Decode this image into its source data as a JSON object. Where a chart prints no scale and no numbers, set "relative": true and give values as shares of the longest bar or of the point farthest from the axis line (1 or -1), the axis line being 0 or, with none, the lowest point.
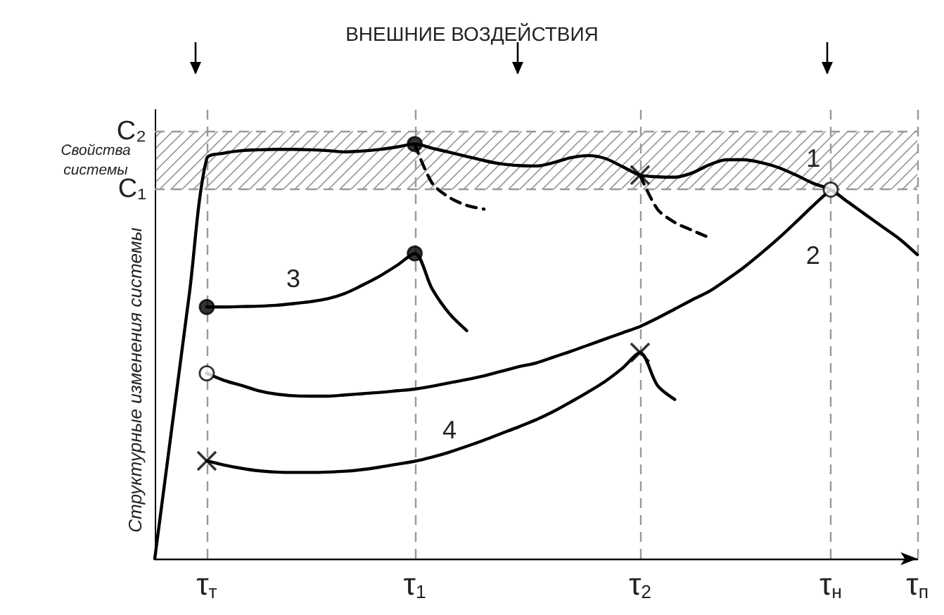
{
  "chart_data": {
    "type": "line",
    "title": "ВНЕШНИЕ ВОЗДЕЙСТВИЯ",
    "ylabel": "Структурные изменения системы",
    "relative": true,
    "grid": "x",
    "categories": [
      null,
      null,
      null,
      "τ$_{т}$",
      null,
      null,
      null,
      null,
      null,
      null,
      null,
      null,
      null,
      null,
      null,
      "τ$_{1}$",
      null,
      null,
      null,
      null,
      null,
      null,
      null,
      null,
      null,
      null,
      null,
      null,
      "τ$_{2}$",
      null,
      null,
      null,
      null,
      null,
      null,
      null,
      null,
      null,
      null,
      "τ$_{н}$",
      null,
      null,
      null,
      null,
      "τ$_{п}$"
    ],
    "line_style": "solid",
    "marker": "none",
    "series": [
      {
        "name": "1",
        "color": "#000000",
        "values": [
          0,
          0.32,
          0.64,
          0.965,
          0.978,
          0.984,
          0.986,
          0.987,
          0.987,
          0.986,
          0.984,
          0.981,
          0.983,
          0.987,
          0.993,
          1.0,
          0.99,
          0.98,
          0.97,
          0.96,
          0.952,
          0.948,
          0.947,
          0.955,
          0.967,
          0.972,
          0.965,
          0.945,
          0.925,
          0.921,
          0.92,
          0.93,
          0.95,
          0.962,
          0.962,
          0.955,
          0.943,
          0.925,
          0.905,
          0.89,
          0.86,
          0.83,
          0.8,
          0.77,
          0.733
        ]
      },
      {
        "color": "#000000",
        "line_style": "dashed",
        "values": [
          null,
          null,
          null,
          null,
          null,
          null,
          null,
          null,
          null,
          null,
          null,
          null,
          null,
          null,
          null,
          1.0,
          0.906,
          0.871,
          0.852,
          0.843,
          null,
          null,
          null,
          null,
          null,
          null,
          null,
          null,
          null,
          null,
          null,
          null,
          null,
          null,
          null,
          null,
          null,
          null,
          null,
          null,
          null,
          null,
          null,
          null,
          null
        ]
      },
      {
        "color": "#000000",
        "line_style": "dashed",
        "values": [
          null,
          null,
          null,
          null,
          null,
          null,
          null,
          null,
          null,
          null,
          null,
          null,
          null,
          null,
          null,
          null,
          null,
          null,
          null,
          null,
          null,
          null,
          null,
          null,
          null,
          null,
          null,
          null,
          0.925,
          0.843,
          0.811,
          0.792,
          0.774,
          null,
          null,
          null,
          null,
          null,
          null,
          null,
          null,
          null,
          null,
          null,
          null
        ]
      },
      {
        "name": "2",
        "color": "#000000",
        "values": [
          null,
          null,
          null,
          0.447,
          0.43,
          0.418,
          0.405,
          0.397,
          0.393,
          0.392,
          0.392,
          0.395,
          0.398,
          0.401,
          0.405,
          0.409,
          0.416,
          0.424,
          0.432,
          0.441,
          0.452,
          0.463,
          0.472,
          0.486,
          0.5,
          0.515,
          0.53,
          0.545,
          0.56,
          0.58,
          0.602,
          0.624,
          0.645,
          0.673,
          0.703,
          0.737,
          0.773,
          0.812,
          0.852,
          0.89,
          null,
          null,
          null,
          null,
          null
        ]
      },
      {
        "name": "3",
        "color": "#000000",
        "values": [
          null,
          null,
          null,
          0.607,
          0.607,
          0.608,
          0.609,
          0.611,
          0.615,
          0.62,
          0.627,
          0.64,
          0.66,
          0.682,
          0.708,
          0.736,
          0.651,
          0.591,
          0.55,
          null,
          null,
          null,
          null,
          null,
          null,
          null,
          null,
          null,
          null,
          null,
          null,
          null,
          null,
          null,
          null,
          null,
          null,
          null,
          null,
          null,
          null,
          null,
          null,
          null,
          null
        ]
      },
      {
        "name": "4",
        "color": "#000000",
        "values": [
          null,
          null,
          null,
          0.236,
          0.226,
          0.218,
          0.212,
          0.209,
          0.208,
          0.208,
          0.209,
          0.211,
          0.215,
          0.221,
          0.228,
          0.235,
          0.245,
          0.257,
          0.271,
          0.286,
          0.302,
          0.318,
          0.335,
          0.355,
          0.378,
          0.402,
          0.428,
          0.46,
          0.497,
          0.418,
          0.384,
          null,
          null,
          null,
          null,
          null,
          null,
          null,
          null,
          null,
          null,
          null,
          null,
          null,
          null
        ]
      },
      {
        "type": "scatter",
        "marker": "circle",
        "color": "#000000",
        "x": [
          "τ$_{1}$",
          "τ$_{т}$",
          "τ$_{1}$"
        ],
        "values": [
          1.0,
          0.607,
          0.736
        ]
      },
      {
        "type": "scatter",
        "marker": "circle",
        "color": "#ffffff",
        "x": [
          "τ$_{т}$",
          "τ$_{н}$"
        ],
        "values": [
          0.447,
          0.89
        ]
      },
      {
        "type": "scatter",
        "marker": "cross",
        "color": "#000000",
        "x": [
          "τ$_{2}$",
          "τ$_{т}$",
          "τ$_{2}$"
        ],
        "values": [
          0.925,
          0.236,
          0.497
        ]
      }
    ],
    "ref_lines": [
      {
        "axis": "y",
        "value": 1.031,
        "label": "C₂",
        "color": "#999999",
        "line_style": "dashed"
      },
      {
        "axis": "y",
        "value": 0.89,
        "label": "C₁",
        "color": "#999999",
        "line_style": "dashed"
      }
    ],
    "bands": [
      {
        "axis": "y",
        "from": 0.89,
        "to": 1.031,
        "label": "Свойства системы",
        "color": "#999999"
      }
    ]
  }
}
